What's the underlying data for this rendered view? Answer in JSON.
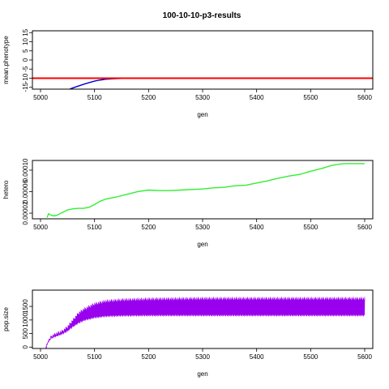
{
  "figure": {
    "title": "100-10-10-p3-results"
  },
  "chart_data": [
    {
      "type": "line",
      "xlabel": "gen",
      "ylabel": "mean.phenotype",
      "xlim": [
        4985,
        5615
      ],
      "ylim": [
        -16,
        16
      ],
      "xticks": [
        5000,
        5100,
        5200,
        5300,
        5400,
        5500,
        5600
      ],
      "yticks": [
        -15,
        -10,
        -5,
        0,
        5,
        10,
        15
      ],
      "hlines": [
        {
          "y": -10,
          "color": "#ff0000"
        }
      ],
      "series": [
        {
          "color": "#0000cc",
          "x": [
            5030,
            5050,
            5060,
            5070,
            5080,
            5090,
            5100,
            5110,
            5120,
            5135,
            5150,
            5175,
            5200,
            5250,
            5300,
            5350,
            5400,
            5430,
            5450,
            5500,
            5550,
            5600
          ],
          "y": [
            -19,
            -16.5,
            -15.3,
            -14.3,
            -13.3,
            -12.4,
            -11.6,
            -11.0,
            -10.6,
            -10.3,
            -10.15,
            -10.1,
            -10.05,
            -10.0,
            -10.0,
            -10.0,
            -9.95,
            -9.85,
            -9.85,
            -9.95,
            -10.0,
            -10.0
          ]
        }
      ]
    },
    {
      "type": "line",
      "xlabel": "gen",
      "ylabel": "hetero",
      "xlim": [
        4985,
        5615
      ],
      "ylim": [
        9.5e-06,
        0.000118
      ],
      "xticks": [
        5000,
        5100,
        5200,
        5300,
        5400,
        5500,
        5600
      ],
      "yticks": [
        2e-05,
        6e-05,
        0.0001
      ],
      "ytick_labels": [
        "0.00002",
        "0.00006",
        "0.00010"
      ],
      "series": [
        {
          "color": "#33ee33",
          "x": [
            5012,
            5015,
            5020,
            5025,
            5030,
            5040,
            5050,
            5060,
            5070,
            5080,
            5090,
            5100,
            5110,
            5120,
            5140,
            5160,
            5180,
            5200,
            5220,
            5240,
            5260,
            5280,
            5300,
            5320,
            5340,
            5360,
            5380,
            5400,
            5420,
            5440,
            5460,
            5480,
            5500,
            5520,
            5540,
            5560,
            5580,
            5600
          ],
          "y": [
            1.2e-05,
            1.9e-05,
            1.6e-05,
            1.5e-05,
            1.6e-05,
            2.1e-05,
            2.6e-05,
            2.8e-05,
            2.9e-05,
            2.9e-05,
            3.1e-05,
            3.6e-05,
            4.2e-05,
            4.6e-05,
            5e-05,
            5.5e-05,
            6e-05,
            6.3e-05,
            6.2e-05,
            6.2e-05,
            6.3e-05,
            6.4e-05,
            6.5e-05,
            6.7e-05,
            6.8e-05,
            7.1e-05,
            7.2e-05,
            7.6e-05,
            8e-05,
            8.5e-05,
            8.9e-05,
            9.2e-05,
            9.8e-05,
            0.000103,
            0.000109,
            0.000112,
            0.000112,
            0.000112
          ]
        }
      ]
    },
    {
      "type": "line",
      "xlabel": "gen",
      "ylabel": "pop.size",
      "xlim": [
        4985,
        5615
      ],
      "ylim": [
        -50,
        2100
      ],
      "xticks": [
        5000,
        5100,
        5200,
        5300,
        5400,
        5500,
        5600
      ],
      "yticks": [
        0,
        500,
        1000,
        1500
      ],
      "series": [
        {
          "color": "#9900ee",
          "style": "oscillating",
          "x_start": 5010,
          "x_end": 5600,
          "envelope_x": [
            5010,
            5015,
            5020,
            5030,
            5040,
            5050,
            5060,
            5070,
            5080,
            5100,
            5120,
            5150,
            5200,
            5300,
            5400,
            5500,
            5600
          ],
          "envelope_low": [
            0,
            200,
            300,
            380,
            450,
            560,
            720,
            850,
            950,
            1050,
            1100,
            1120,
            1130,
            1130,
            1130,
            1130,
            1130
          ],
          "envelope_high": [
            0,
            300,
            450,
            560,
            640,
            800,
            1050,
            1300,
            1450,
            1650,
            1750,
            1800,
            1830,
            1850,
            1850,
            1850,
            1850
          ]
        }
      ]
    }
  ]
}
